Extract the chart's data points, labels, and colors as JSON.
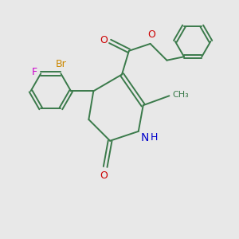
{
  "bg_color": "#e8e8e8",
  "bond_color": "#3a7a4a",
  "bond_width": 1.4,
  "atom_colors": {
    "Br": "#cc8800",
    "F": "#cc00cc",
    "O": "#cc0000",
    "N": "#0000cc",
    "C": "#3a7a4a"
  },
  "font_size": 9,
  "font_size_small": 8
}
